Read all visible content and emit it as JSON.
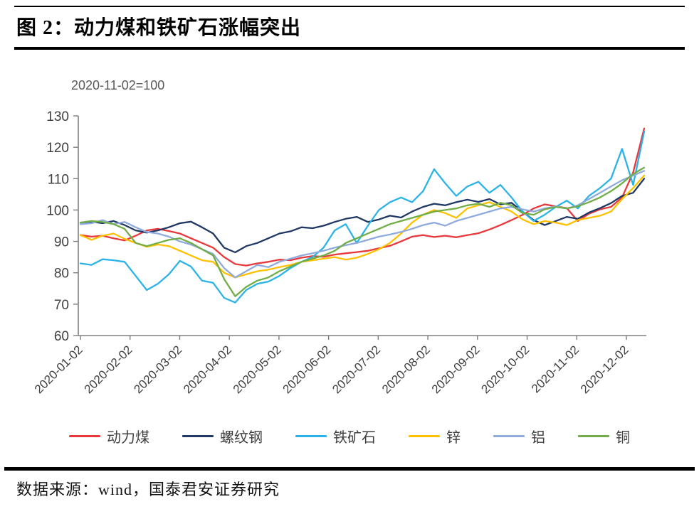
{
  "page": {
    "title": "图 2：动力煤和铁矿石涨幅突出",
    "source": "数据来源：wind，国泰君安证券研究"
  },
  "chart_data": {
    "type": "line",
    "subtitle": "2020-11-02=100",
    "title": "动力煤和铁矿石涨幅突出",
    "ylim": [
      60,
      130
    ],
    "y_ticks": [
      60,
      70,
      80,
      90,
      100,
      110,
      120,
      130
    ],
    "x_tick_labels": [
      "2020-01-02",
      "2020-02-02",
      "2020-03-02",
      "2020-04-02",
      "2020-05-02",
      "2020-06-02",
      "2020-07-02",
      "2020-08-02",
      "2020-09-02",
      "2020-10-02",
      "2020-11-02",
      "2020-12-02"
    ],
    "x_range_note": "daily data 2020-01-02 to mid-December 2020, sampled ~weekly below",
    "grid": false,
    "legend_position": "bottom",
    "series": [
      {
        "name": "动力煤",
        "slug": "thermal-coal",
        "color": "#E9383C",
        "values": [
          92,
          91.5,
          91.8,
          91,
          90.3,
          91.8,
          93.5,
          94,
          93.3,
          92.5,
          91,
          89.5,
          88,
          85,
          82.8,
          82.3,
          83,
          83.5,
          84.2,
          84,
          84.8,
          85.3,
          85.1,
          85.8,
          86.2,
          86.6,
          87,
          87.8,
          88.6,
          90,
          91.5,
          92,
          91.4,
          91.8,
          91.3,
          92,
          92.6,
          93.8,
          95.2,
          96.8,
          98.5,
          100.5,
          101.8,
          101.2,
          100.6,
          96.5,
          98.8,
          100.2,
          101,
          104,
          112,
          126
        ]
      },
      {
        "name": "螺纹钢",
        "slug": "rebar",
        "color": "#1F3864",
        "values": [
          96,
          96.3,
          95.8,
          96.5,
          95.2,
          93.5,
          92.8,
          93.5,
          94.5,
          95.8,
          96.3,
          94.5,
          92.5,
          88,
          86.5,
          88.5,
          89.5,
          91,
          92.5,
          93.2,
          94.5,
          94.2,
          95,
          96.2,
          97.2,
          97.8,
          96.2,
          97,
          98.2,
          97.6,
          99.5,
          101,
          102,
          101.5,
          102.5,
          103.3,
          102.6,
          103.5,
          101.8,
          102.3,
          99.5,
          96.8,
          95.2,
          96.5,
          97.8,
          97.2,
          99.2,
          100.6,
          102.2,
          104.5,
          105.5,
          110
        ]
      },
      {
        "name": "铁矿石",
        "slug": "iron-ore",
        "color": "#2BB3E8",
        "values": [
          83,
          82.5,
          84.3,
          84,
          83.5,
          79,
          74.5,
          76.5,
          79.5,
          83.8,
          82,
          77.5,
          76.8,
          72,
          70.5,
          74.5,
          76.5,
          77.2,
          79,
          81.5,
          83.5,
          85,
          88,
          93.5,
          95.5,
          89.5,
          95,
          100,
          102.5,
          104,
          102.5,
          106,
          113,
          108.5,
          104.5,
          107.5,
          109,
          105.5,
          108,
          104,
          99.5,
          96.5,
          98.5,
          101,
          103,
          100.5,
          104.5,
          107,
          110,
          119.5,
          108,
          125
        ]
      },
      {
        "name": "锌",
        "slug": "zinc",
        "color": "#FFC000",
        "values": [
          92,
          90.5,
          91.8,
          92.5,
          90.8,
          89.5,
          88.3,
          89,
          88.5,
          87,
          85.5,
          84,
          83.5,
          80,
          78.5,
          79.5,
          80.5,
          81,
          81.8,
          82.5,
          83.5,
          84,
          84.5,
          85,
          84.2,
          84.8,
          86,
          87.5,
          89.5,
          92.5,
          96,
          98.5,
          100,
          99,
          97.5,
          100.5,
          101.5,
          102.5,
          101,
          99.5,
          97,
          95.5,
          96.5,
          96,
          95.2,
          96.8,
          97.5,
          98.2,
          99.5,
          103.5,
          107,
          111
        ]
      },
      {
        "name": "铝",
        "slug": "aluminum",
        "color": "#8FAADC",
        "values": [
          95.5,
          95.8,
          96.8,
          95.5,
          96.2,
          94.5,
          93,
          92.5,
          91.5,
          90,
          89,
          87.5,
          86,
          81.5,
          78.5,
          80.5,
          82.5,
          81.8,
          83.5,
          84.5,
          85.5,
          86.2,
          87,
          88,
          88.8,
          89.5,
          90.5,
          91.5,
          92.2,
          93,
          94,
          95.2,
          96,
          95,
          96.5,
          97.5,
          98.5,
          99.5,
          100.5,
          101,
          100.2,
          99.5,
          100.5,
          101.2,
          100.5,
          101.5,
          103.5,
          105.5,
          107.5,
          109.5,
          111,
          112.5
        ]
      },
      {
        "name": "铜",
        "slug": "copper",
        "color": "#70AD47",
        "values": [
          96,
          96.5,
          96.2,
          95.5,
          94,
          89.5,
          88.5,
          89.5,
          90.5,
          91,
          89.5,
          87.5,
          85.5,
          78,
          72.5,
          75.5,
          77.5,
          78.5,
          80.5,
          82,
          83.5,
          84.5,
          85.5,
          87,
          89.5,
          91,
          92.5,
          94,
          95.5,
          96.5,
          97.5,
          98.5,
          99.5,
          100,
          100.5,
          101.5,
          102,
          101,
          102.3,
          101.5,
          99,
          98.5,
          100.2,
          101,
          100.5,
          101.2,
          102.5,
          104,
          106,
          108.5,
          111.5,
          113.5
        ]
      }
    ]
  }
}
